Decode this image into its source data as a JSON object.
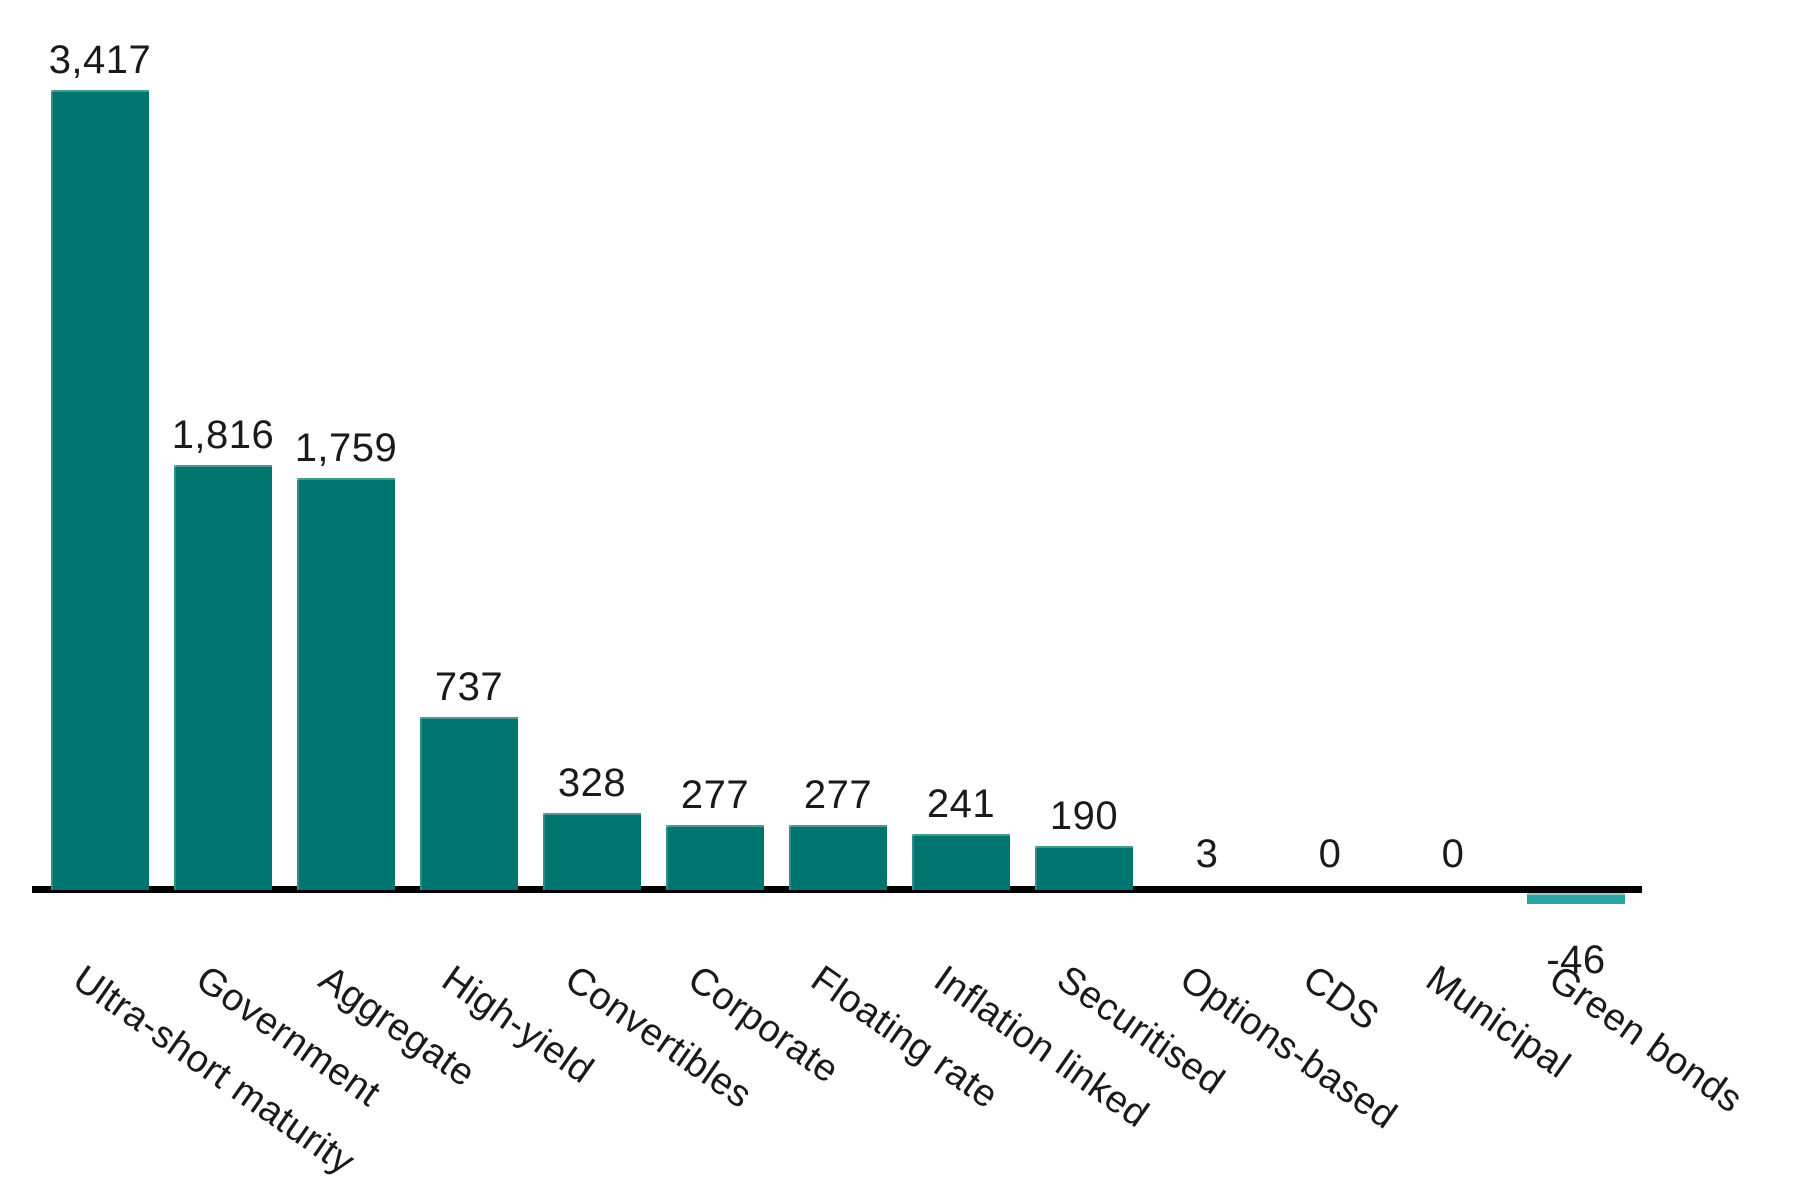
{
  "chart_data": {
    "type": "bar",
    "title": "",
    "xlabel": "",
    "ylabel": "",
    "categories": [
      "Ultra-short maturity",
      "Government",
      "Aggregate",
      "High-yield",
      "Convertibles",
      "Corporate",
      "Floating rate",
      "Inflation linked",
      "Securitised",
      "Options-based",
      "CDS",
      "Municipal",
      "Green bonds"
    ],
    "values": [
      3417,
      1816,
      1759,
      737,
      328,
      277,
      277,
      241,
      190,
      3,
      0,
      0,
      -46
    ],
    "value_labels": [
      "3,417",
      "1,816",
      "1,759",
      "737",
      "328",
      "277",
      "277",
      "241",
      "190",
      "3",
      "0",
      "0",
      "-46"
    ],
    "ylim": [
      -46,
      3417
    ],
    "grid": false,
    "legend": false,
    "label_rotation_deg": 35,
    "colors": {
      "bar": "#00756F",
      "negative_bar": "#2AA5A0",
      "near_zero_bar_fill": "#f0f0f0",
      "near_zero_bar_border": "#9b9b9b",
      "axis": "#000000",
      "label": "#1a1a1a",
      "background": "#ffffff"
    }
  }
}
